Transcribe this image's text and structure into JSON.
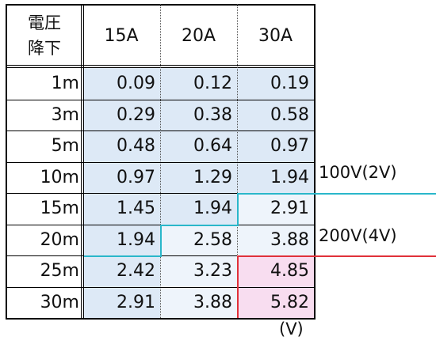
{
  "table": {
    "corner_line1": "電圧",
    "corner_line2": "降下",
    "columns": [
      "15A",
      "20A",
      "30A"
    ],
    "rows": [
      {
        "label": "1m",
        "values": [
          "0.09",
          "0.12",
          "0.19"
        ]
      },
      {
        "label": "3m",
        "values": [
          "0.29",
          "0.38",
          "0.58"
        ]
      },
      {
        "label": "5m",
        "values": [
          "0.48",
          "0.64",
          "0.97"
        ]
      },
      {
        "label": "10m",
        "values": [
          "0.97",
          "1.29",
          "1.94"
        ]
      },
      {
        "label": "15m",
        "values": [
          "1.45",
          "1.94",
          "2.91"
        ]
      },
      {
        "label": "20m",
        "values": [
          "1.94",
          "2.58",
          "3.88"
        ]
      },
      {
        "label": "25m",
        "values": [
          "2.42",
          "3.23",
          "4.85"
        ]
      },
      {
        "label": "30m",
        "values": [
          "2.91",
          "3.88",
          "5.82"
        ]
      }
    ]
  },
  "annotations": {
    "label_100v": "100V(2V)",
    "label_200v": "200V(4V)",
    "unit": "(V)"
  },
  "colors": {
    "cell_blue": "#dde9f6",
    "cell_light": "#eef4fb",
    "cell_pink": "#f8ddf0",
    "line_cyan": "#2ab7ca",
    "line_red": "#e0313a",
    "border": "#000000"
  }
}
